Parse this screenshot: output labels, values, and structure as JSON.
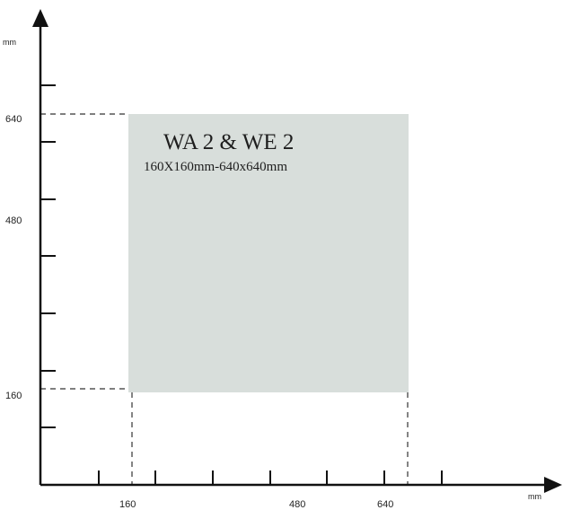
{
  "zone": {
    "title": "WA 2 & WE 2",
    "subtitle": "160X160mm-640x640mm",
    "x_range": [
      160,
      640
    ],
    "y_range": [
      160,
      640
    ],
    "fill_color": "#d8dedb"
  },
  "x_axis": {
    "unit": "mm",
    "tick_labels": [
      "160",
      "480",
      "640"
    ]
  },
  "y_axis": {
    "unit": "mm",
    "tick_labels": [
      "640",
      "480",
      "160"
    ]
  },
  "colors": {
    "axis": "#111111",
    "guide": "#333333"
  }
}
